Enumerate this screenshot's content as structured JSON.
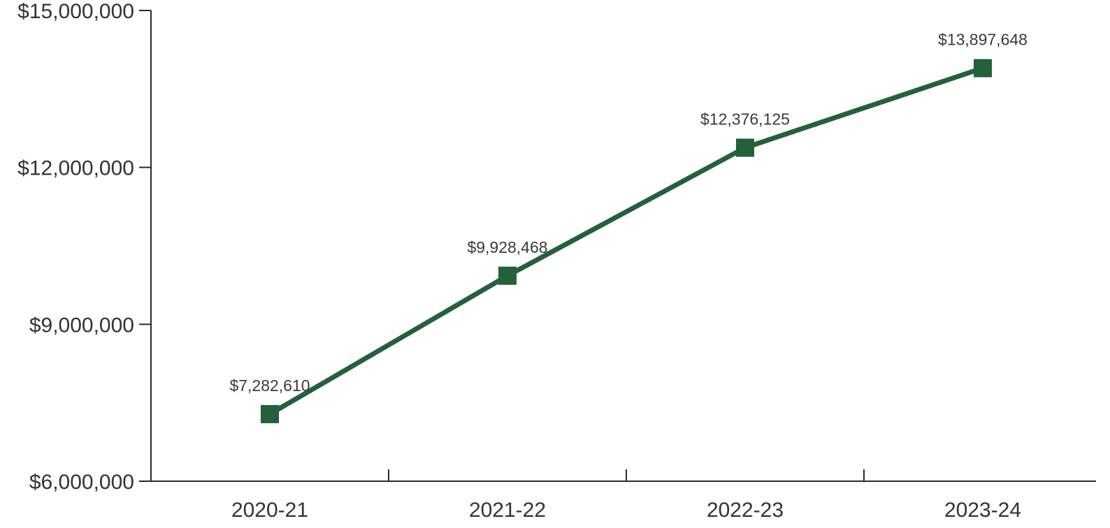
{
  "chart_data": {
    "type": "line",
    "title": "",
    "xlabel": "",
    "ylabel": "",
    "categories": [
      "2020-21",
      "2021-22",
      "2022-23",
      "2023-24"
    ],
    "series": [
      {
        "values": [
          7282610,
          9928468,
          12376125,
          13897648
        ],
        "data_labels": [
          "$7,282,610",
          "$9,928,468",
          "$12,376,125",
          "$13,897,648"
        ],
        "color": "#24603a",
        "marker": "square"
      }
    ],
    "ylim": [
      6000000,
      15000000
    ],
    "y_ticks": [
      {
        "value": 6000000,
        "label": "$6,000,000"
      },
      {
        "value": 9000000,
        "label": "$9,000,000"
      },
      {
        "value": 12000000,
        "label": "$12,000,000"
      },
      {
        "value": 15000000,
        "label": "$15,000,000"
      }
    ],
    "grid": false,
    "legend": "none"
  }
}
